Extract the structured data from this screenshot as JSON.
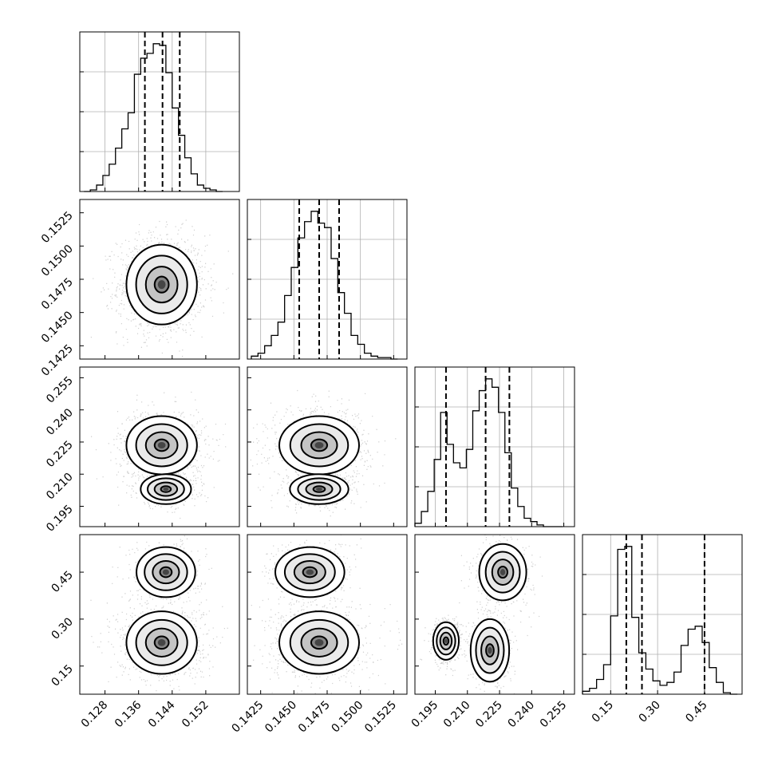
{
  "chart_data": {
    "type": "corner",
    "grid": true,
    "parameters": [
      {
        "ticks": [
          0.128,
          0.136,
          0.144,
          0.152
        ],
        "tick_labels": [
          "0.128",
          "0.136",
          "0.144",
          "0.152"
        ],
        "range": [
          0.122,
          0.16
        ],
        "quantiles": [
          0.1375,
          0.1417,
          0.1458
        ],
        "hist_bins": [
          0.123,
          0.1245,
          0.126,
          0.1275,
          0.129,
          0.1305,
          0.132,
          0.1335,
          0.135,
          0.1365,
          0.138,
          0.1395,
          0.141,
          0.1425,
          0.144,
          0.1455,
          0.147,
          0.1485,
          0.15,
          0.1515,
          0.153,
          0.1545,
          0.156,
          0.1575
        ],
        "hist_counts": [
          0.0,
          0.01,
          0.04,
          0.1,
          0.17,
          0.27,
          0.39,
          0.49,
          0.73,
          0.83,
          0.86,
          0.92,
          0.91,
          0.74,
          0.52,
          0.35,
          0.21,
          0.11,
          0.04,
          0.02,
          0.01,
          0.0
        ]
      },
      {
        "ticks": [
          0.1425,
          0.145,
          0.1475,
          0.15,
          0.1525
        ],
        "tick_labels": [
          "0.1425",
          "0.1450",
          "0.1475",
          "0.1500",
          "0.1525"
        ],
        "range": [
          0.1415,
          0.1535
        ],
        "quantiles": [
          0.1454,
          0.1469,
          0.1484
        ],
        "hist_bins": [
          0.1418,
          0.1423,
          0.1428,
          0.1433,
          0.1438,
          0.1443,
          0.1448,
          0.1453,
          0.1458,
          0.1463,
          0.1468,
          0.1473,
          0.1478,
          0.1483,
          0.1488,
          0.1493,
          0.1498,
          0.1503,
          0.1508,
          0.1513,
          0.1518,
          0.1523,
          0.1528
        ],
        "hist_counts": [
          0.02,
          0.04,
          0.09,
          0.16,
          0.25,
          0.43,
          0.62,
          0.82,
          0.93,
          1.0,
          0.92,
          0.89,
          0.68,
          0.45,
          0.31,
          0.16,
          0.1,
          0.04,
          0.02,
          0.01,
          0.01,
          0.0
        ]
      },
      {
        "ticks": [
          0.195,
          0.21,
          0.225,
          0.24,
          0.255
        ],
        "tick_labels": [
          "0.195",
          "0.210",
          "0.225",
          "0.240",
          "0.255"
        ],
        "range": [
          0.1855,
          0.26
        ],
        "quantiles": [
          0.2,
          0.2185,
          0.2296
        ],
        "hist_bins": [
          0.1855,
          0.1885,
          0.1915,
          0.1945,
          0.1975,
          0.2005,
          0.2035,
          0.2065,
          0.2095,
          0.2125,
          0.2155,
          0.2185,
          0.2215,
          0.2245,
          0.2275,
          0.2305,
          0.2335,
          0.2365,
          0.2395,
          0.2425,
          0.2455,
          0.2485,
          0.2515,
          0.2545
        ],
        "hist_counts": [
          0.02,
          0.09,
          0.21,
          0.4,
          0.68,
          0.49,
          0.38,
          0.35,
          0.46,
          0.69,
          0.81,
          0.88,
          0.83,
          0.68,
          0.44,
          0.23,
          0.12,
          0.05,
          0.03,
          0.01,
          0.0,
          0.0,
          0.0
        ]
      },
      {
        "ticks": [
          0.15,
          0.3,
          0.45
        ],
        "tick_labels": [
          "0.15",
          "0.30",
          "0.45"
        ],
        "range": [
          0.06,
          0.57
        ],
        "quantiles": [
          0.2,
          0.25,
          0.45
        ],
        "hist_bins": [
          0.06,
          0.0825,
          0.105,
          0.1275,
          0.15,
          0.1725,
          0.195,
          0.2175,
          0.24,
          0.2625,
          0.285,
          0.3075,
          0.33,
          0.3525,
          0.375,
          0.3975,
          0.42,
          0.4425,
          0.465,
          0.4875,
          0.51,
          0.5325,
          0.555
        ],
        "hist_counts": [
          0.02,
          0.04,
          0.1,
          0.2,
          0.53,
          0.98,
          1.0,
          0.52,
          0.28,
          0.17,
          0.09,
          0.06,
          0.08,
          0.15,
          0.33,
          0.44,
          0.46,
          0.35,
          0.18,
          0.08,
          0.01,
          0.0
        ]
      }
    ],
    "pairs": [
      {
        "row": 1,
        "col": 0,
        "modes": [
          {
            "x": 0.1415,
            "y": 0.1471,
            "sx": 0.0042,
            "sy": 0.0015,
            "w": 1
          }
        ]
      },
      {
        "row": 2,
        "col": 0,
        "modes": [
          {
            "x": 0.1415,
            "y": 0.2235,
            "sx": 0.0042,
            "sy": 0.0068,
            "w": 0.66
          },
          {
            "x": 0.1425,
            "y": 0.203,
            "sx": 0.003,
            "sy": 0.0035,
            "w": 0.34
          }
        ]
      },
      {
        "row": 2,
        "col": 1,
        "modes": [
          {
            "x": 0.1469,
            "y": 0.2235,
            "sx": 0.0015,
            "sy": 0.0068,
            "w": 0.66
          },
          {
            "x": 0.1469,
            "y": 0.203,
            "sx": 0.0011,
            "sy": 0.0035,
            "w": 0.34
          }
        ]
      },
      {
        "row": 3,
        "col": 0,
        "modes": [
          {
            "x": 0.1425,
            "y": 0.45,
            "sx": 0.0035,
            "sy": 0.04,
            "w": 0.35
          },
          {
            "x": 0.1415,
            "y": 0.225,
            "sx": 0.0042,
            "sy": 0.05,
            "w": 0.65
          }
        ]
      },
      {
        "row": 3,
        "col": 1,
        "modes": [
          {
            "x": 0.1462,
            "y": 0.45,
            "sx": 0.0013,
            "sy": 0.04,
            "w": 0.35
          },
          {
            "x": 0.1469,
            "y": 0.225,
            "sx": 0.0015,
            "sy": 0.05,
            "w": 0.65
          }
        ]
      },
      {
        "row": 3,
        "col": 2,
        "modes": [
          {
            "x": 0.2265,
            "y": 0.45,
            "sx": 0.0055,
            "sy": 0.045,
            "w": 0.35
          },
          {
            "x": 0.2,
            "y": 0.23,
            "sx": 0.003,
            "sy": 0.03,
            "w": 0.35
          },
          {
            "x": 0.2205,
            "y": 0.2,
            "sx": 0.0045,
            "sy": 0.05,
            "w": 0.3
          }
        ]
      }
    ]
  }
}
